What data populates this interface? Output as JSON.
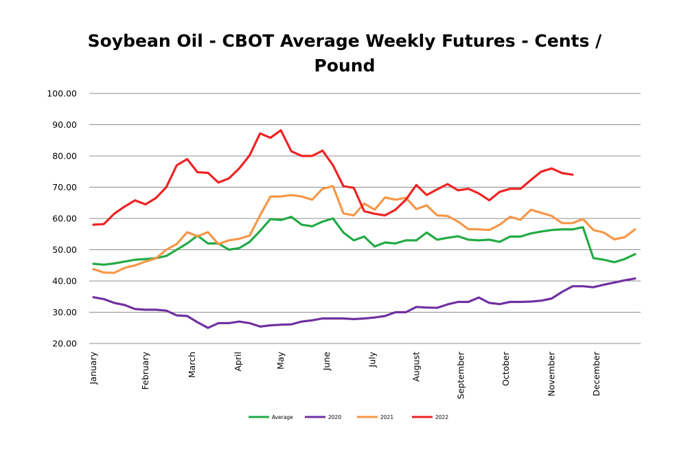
{
  "chart_data": {
    "type": "line",
    "title": "Soybean Oil - CBOT Average Weekly Futures - Cents / Pound",
    "title_lines": [
      "Soybean Oil - CBOT Average Weekly Futures - Cents /",
      "Pound"
    ],
    "xlabel": "",
    "ylabel": "",
    "ylim": [
      20,
      100
    ],
    "yticks": [
      "20.00",
      "30.00",
      "40.00",
      "50.00",
      "60.00",
      "70.00",
      "80.00",
      "90.00",
      "100.00"
    ],
    "grid": "horizontal",
    "legend_position": "bottom",
    "x_unit": "week of year (1-53)",
    "x_ticks": [
      {
        "label": "January",
        "week": 1
      },
      {
        "label": "February",
        "week": 6
      },
      {
        "label": "March",
        "week": 10.5
      },
      {
        "label": "April",
        "week": 14.9
      },
      {
        "label": "May",
        "week": 19
      },
      {
        "label": "June",
        "week": 23.4
      },
      {
        "label": "July",
        "week": 27.8
      },
      {
        "label": "August",
        "week": 32
      },
      {
        "label": "September",
        "week": 36.3
      },
      {
        "label": "October",
        "week": 40.6
      },
      {
        "label": "November",
        "week": 45
      },
      {
        "label": "December",
        "week": 49.3
      }
    ],
    "series": [
      {
        "name": "Average",
        "color": "#22aa44",
        "values": [
          45.5,
          45.2,
          45.6,
          46.2,
          46.8,
          47.0,
          47.3,
          48.0,
          50.0,
          52.0,
          54.5,
          52.0,
          52.0,
          50.0,
          50.5,
          52.5,
          56.0,
          59.8,
          59.5,
          60.5,
          58.0,
          57.5,
          59.0,
          60.0,
          55.5,
          53.0,
          54.2,
          51.0,
          52.3,
          52.0,
          53.0,
          53.0,
          55.5,
          53.2,
          53.8,
          54.3,
          53.2,
          53.0,
          53.2,
          52.5,
          54.2,
          54.2,
          55.2,
          55.8,
          56.3,
          56.5,
          56.5,
          57.2,
          47.3,
          46.8,
          46.0,
          47.0,
          48.6
        ]
      },
      {
        "name": "2020",
        "color": "#7030a0",
        "values": [
          34.8,
          34.2,
          33.0,
          32.3,
          31.0,
          30.8,
          30.8,
          30.5,
          29.0,
          28.8,
          26.8,
          25.0,
          26.5,
          26.5,
          27.0,
          26.5,
          25.4,
          25.8,
          26.0,
          26.1,
          27.0,
          27.4,
          28.0,
          28.0,
          28.0,
          27.8,
          28.0,
          28.3,
          28.8,
          30.0,
          30.0,
          31.7,
          31.5,
          31.4,
          32.5,
          33.3,
          33.3,
          34.7,
          33.0,
          32.6,
          33.3,
          33.3,
          33.4,
          33.7,
          34.4,
          36.5,
          38.3,
          38.3,
          38.0,
          38.8,
          39.5,
          40.2,
          40.8
        ]
      },
      {
        "name": "2021",
        "color": "#f79646",
        "values": [
          43.8,
          42.7,
          42.6,
          44.2,
          45.0,
          46.2,
          47.2,
          50.0,
          51.8,
          55.6,
          54.3,
          55.6,
          51.8,
          53.0,
          53.5,
          54.5,
          61.0,
          67.0,
          67.0,
          67.5,
          67.0,
          66.0,
          69.5,
          70.3,
          61.6,
          61.0,
          64.8,
          62.8,
          66.7,
          66.0,
          66.6,
          63.0,
          64.2,
          61.0,
          60.8,
          59.0,
          56.6,
          56.5,
          56.3,
          58.0,
          60.5,
          59.6,
          62.8,
          61.8,
          60.8,
          58.5,
          58.5,
          59.8,
          56.3,
          55.5,
          53.3,
          54.0,
          56.5
        ]
      },
      {
        "name": "2022",
        "color": "#ee2222",
        "values": [
          58.0,
          58.2,
          61.5,
          63.8,
          65.8,
          64.5,
          66.5,
          70.0,
          77.0,
          79.0,
          74.8,
          74.6,
          71.5,
          72.8,
          76.0,
          80.2,
          87.2,
          85.8,
          88.2,
          81.5,
          80.0,
          80.0,
          81.7,
          77.0,
          70.3,
          69.8,
          62.3,
          61.5,
          61.0,
          62.8,
          66.0,
          70.7,
          67.5,
          69.3,
          71.0,
          69.0,
          69.5,
          68.0,
          65.8,
          68.5,
          69.5,
          69.5,
          72.3,
          75.0,
          76.0,
          74.5,
          74.0
        ]
      }
    ]
  }
}
